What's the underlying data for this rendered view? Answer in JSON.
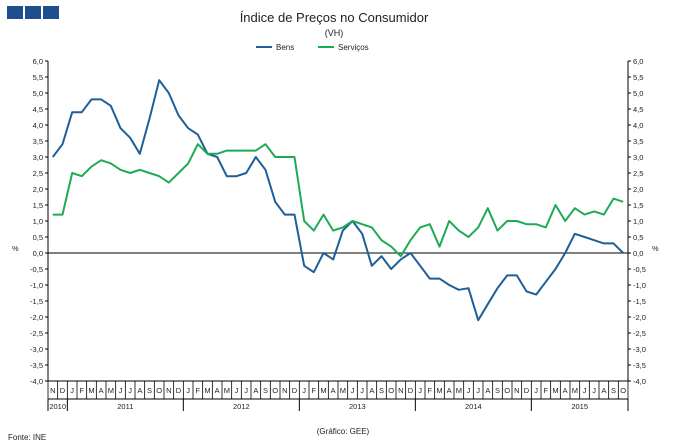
{
  "chart_data": {
    "type": "line",
    "title": "Índice de Preços no Consumidor",
    "subtitle": "(VH)",
    "y_unit_left": "%",
    "y_unit_right": "%",
    "ylim": [
      -4.0,
      6.0
    ],
    "y_ticks": [
      "6,0",
      "5,5",
      "5,0",
      "4,5",
      "4,0",
      "3,5",
      "3,0",
      "2,5",
      "2,0",
      "1,5",
      "1,0",
      "0,5",
      "0,0",
      "-0,5",
      "-1,0",
      "-1,5",
      "-2,0",
      "-2,5",
      "-3,0",
      "-3,5",
      "-4,0"
    ],
    "legend_position": "top-center",
    "grid": false,
    "x": [
      "2010-11",
      "2010-12",
      "2011-01",
      "2011-02",
      "2011-03",
      "2011-04",
      "2011-05",
      "2011-06",
      "2011-07",
      "2011-08",
      "2011-09",
      "2011-10",
      "2011-11",
      "2011-12",
      "2012-01",
      "2012-02",
      "2012-03",
      "2012-04",
      "2012-05",
      "2012-06",
      "2012-07",
      "2012-08",
      "2012-09",
      "2012-10",
      "2012-11",
      "2012-12",
      "2013-01",
      "2013-02",
      "2013-03",
      "2013-04",
      "2013-05",
      "2013-06",
      "2013-07",
      "2013-08",
      "2013-09",
      "2013-10",
      "2013-11",
      "2013-12",
      "2014-01",
      "2014-02",
      "2014-03",
      "2014-04",
      "2014-05",
      "2014-06",
      "2014-07",
      "2014-08",
      "2014-09",
      "2014-10",
      "2014-11",
      "2014-12",
      "2015-01",
      "2015-02",
      "2015-03",
      "2015-04",
      "2015-05",
      "2015-06",
      "2015-07",
      "2015-08",
      "2015-09",
      "2015-10"
    ],
    "month_labels": [
      "N",
      "D",
      "J",
      "F",
      "M",
      "A",
      "M",
      "J",
      "J",
      "A",
      "S",
      "O",
      "N",
      "D",
      "J",
      "F",
      "M",
      "A",
      "M",
      "J",
      "J",
      "A",
      "S",
      "O",
      "N",
      "D",
      "J",
      "F",
      "M",
      "A",
      "M",
      "J",
      "J",
      "A",
      "S",
      "O",
      "N",
      "D",
      "J",
      "F",
      "M",
      "A",
      "M",
      "J",
      "J",
      "A",
      "S",
      "O",
      "N",
      "D",
      "J",
      "F",
      "M",
      "A",
      "M",
      "J",
      "J",
      "A",
      "S",
      "O"
    ],
    "year_groups": [
      {
        "label": "2010",
        "start": 0,
        "end": 1
      },
      {
        "label": "2011",
        "start": 2,
        "end": 13
      },
      {
        "label": "2012",
        "start": 14,
        "end": 25
      },
      {
        "label": "2013",
        "start": 26,
        "end": 37
      },
      {
        "label": "2014",
        "start": 38,
        "end": 49
      },
      {
        "label": "2015",
        "start": 50,
        "end": 59
      }
    ],
    "series": [
      {
        "name": "Bens",
        "color": "#1f5f99",
        "values": [
          3.0,
          3.4,
          4.4,
          4.4,
          4.8,
          4.8,
          4.6,
          3.9,
          3.6,
          3.1,
          4.2,
          5.4,
          5.0,
          4.3,
          3.9,
          3.7,
          3.1,
          3.0,
          2.4,
          2.4,
          2.5,
          3.0,
          2.6,
          1.6,
          1.2,
          1.2,
          -0.4,
          -0.6,
          0.0,
          -0.2,
          0.7,
          1.0,
          0.6,
          -0.4,
          -0.1,
          -0.5,
          -0.2,
          0.0,
          -0.4,
          -0.8,
          -0.8,
          -1.0,
          -1.15,
          -1.1,
          -2.1,
          -1.6,
          -1.1,
          -0.7,
          -0.7,
          -1.2,
          -1.3,
          -0.9,
          -0.5,
          0.0,
          0.6,
          0.5,
          0.4,
          0.3,
          0.3,
          0.0
        ]
      },
      {
        "name": "Serviços",
        "color": "#1faa55",
        "values": [
          1.2,
          1.2,
          2.5,
          2.4,
          2.7,
          2.9,
          2.8,
          2.6,
          2.5,
          2.6,
          2.5,
          2.4,
          2.2,
          2.5,
          2.8,
          3.4,
          3.1,
          3.1,
          3.2,
          3.2,
          3.2,
          3.2,
          3.4,
          3.0,
          3.0,
          3.0,
          1.0,
          0.7,
          1.2,
          0.7,
          0.8,
          1.0,
          0.9,
          0.8,
          0.4,
          0.2,
          -0.1,
          0.4,
          0.8,
          0.9,
          0.2,
          1.0,
          0.7,
          0.5,
          0.8,
          1.4,
          0.7,
          1.0,
          1.0,
          0.9,
          0.9,
          0.8,
          1.5,
          1.0,
          1.4,
          1.2,
          1.3,
          1.2,
          1.7,
          1.6
        ]
      }
    ]
  },
  "footer": {
    "source": "Fonte: INE",
    "credit": "(Gráfico: GEE)"
  },
  "colors": {
    "logo": "#1f4e8c",
    "axis": "#000000"
  }
}
